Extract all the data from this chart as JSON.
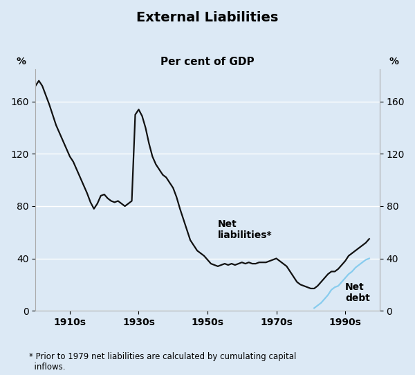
{
  "title": "External Liabilities",
  "subtitle": "Per cent of GDP",
  "footnote": "* Prior to 1979 net liabilities are calculated by cumulating capital\n  inflows.",
  "pct_label": "%",
  "background_color": "#dce9f5",
  "yticks": [
    0,
    40,
    80,
    120,
    160
  ],
  "ylim": [
    0,
    185
  ],
  "xlim": [
    1900,
    2000
  ],
  "xtick_positions": [
    1910,
    1930,
    1950,
    1970,
    1990
  ],
  "xtick_labels": [
    "1910s",
    "1930s",
    "1950s",
    "1970s",
    "1990s"
  ],
  "net_liabilities_x": [
    1900,
    1901,
    1902,
    1903,
    1904,
    1905,
    1906,
    1907,
    1908,
    1909,
    1910,
    1911,
    1912,
    1913,
    1914,
    1915,
    1916,
    1917,
    1918,
    1919,
    1920,
    1921,
    1922,
    1923,
    1924,
    1925,
    1926,
    1927,
    1928,
    1929,
    1930,
    1931,
    1932,
    1933,
    1934,
    1935,
    1936,
    1937,
    1938,
    1939,
    1940,
    1941,
    1942,
    1943,
    1944,
    1945,
    1946,
    1947,
    1948,
    1949,
    1950,
    1951,
    1952,
    1953,
    1954,
    1955,
    1956,
    1957,
    1958,
    1959,
    1960,
    1961,
    1962,
    1963,
    1964,
    1965,
    1966,
    1967,
    1968,
    1969,
    1970,
    1971,
    1972,
    1973,
    1974,
    1975,
    1976,
    1977,
    1978,
    1979,
    1980,
    1981,
    1982,
    1983,
    1984,
    1985,
    1986,
    1987,
    1988,
    1989,
    1990,
    1991,
    1992,
    1993,
    1994,
    1995,
    1996,
    1997
  ],
  "net_liabilities_y": [
    172,
    176,
    172,
    165,
    158,
    150,
    142,
    136,
    130,
    124,
    118,
    114,
    108,
    102,
    96,
    90,
    83,
    78,
    82,
    88,
    89,
    86,
    84,
    83,
    84,
    82,
    80,
    82,
    84,
    150,
    154,
    149,
    140,
    128,
    118,
    112,
    108,
    104,
    102,
    98,
    94,
    87,
    78,
    70,
    62,
    54,
    50,
    46,
    44,
    42,
    39,
    36,
    35,
    34,
    35,
    36,
    35,
    36,
    35,
    36,
    37,
    36,
    37,
    36,
    36,
    37,
    37,
    37,
    38,
    39,
    40,
    38,
    36,
    34,
    30,
    26,
    22,
    20,
    19,
    18,
    17,
    17,
    19,
    22,
    25,
    28,
    30,
    30,
    32,
    35,
    38,
    42,
    44,
    46,
    48,
    50,
    52,
    55
  ],
  "net_liabilities_color": "#111111",
  "net_liabilities_linewidth": 1.6,
  "net_debt_x": [
    1981,
    1982,
    1983,
    1984,
    1985,
    1986,
    1987,
    1988,
    1989,
    1990,
    1991,
    1992,
    1993,
    1994,
    1995,
    1996,
    1997
  ],
  "net_debt_y": [
    2,
    4,
    6,
    9,
    12,
    16,
    18,
    19,
    22,
    25,
    28,
    30,
    33,
    35,
    37,
    39,
    40
  ],
  "net_debt_color": "#88ccee",
  "net_debt_linewidth": 1.6,
  "ann_nl_x": 1953,
  "ann_nl_y": 62,
  "ann_nl_text": "Net\nliabilities*",
  "ann_nd_x": 1990,
  "ann_nd_y": 14,
  "ann_nd_text": "Net\ndebt",
  "ann_fontsize": 10,
  "ann_fontweight": "bold",
  "grid_color": "#ffffff",
  "grid_linewidth": 1.0,
  "title_fontsize": 14,
  "subtitle_fontsize": 11,
  "tick_fontsize": 10,
  "footnote_fontsize": 8.5
}
